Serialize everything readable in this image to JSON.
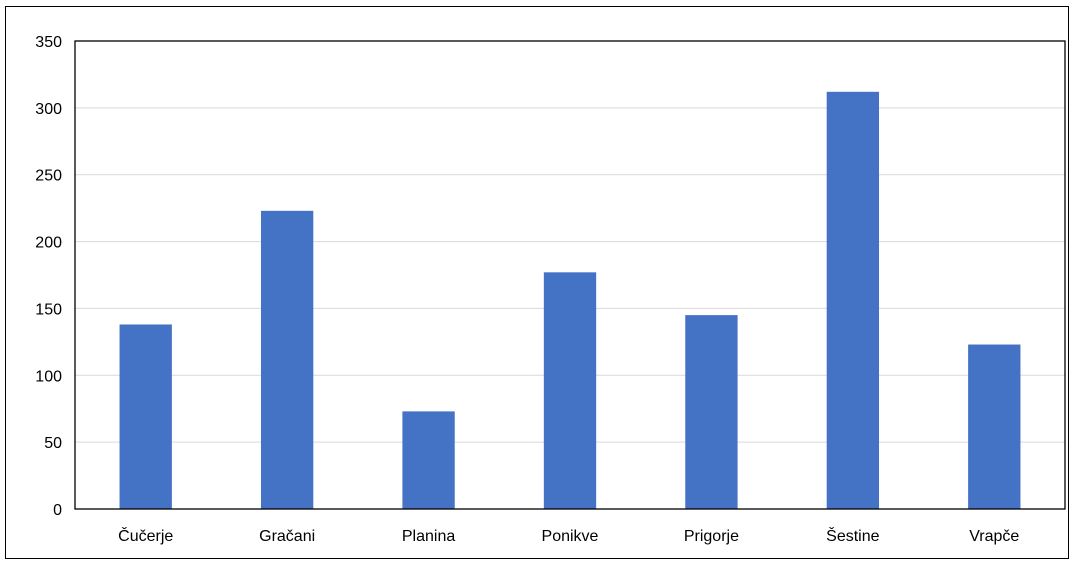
{
  "chart_data": {
    "type": "bar",
    "categories": [
      "Čučerje",
      "Gračani",
      "Planina",
      "Ponikve",
      "Prigorje",
      "Šestine",
      "Vrapče"
    ],
    "values": [
      138,
      223,
      73,
      177,
      145,
      312,
      123
    ],
    "title": "",
    "xlabel": "",
    "ylabel": "",
    "ylim": [
      0,
      350
    ],
    "yticks": [
      0,
      50,
      100,
      150,
      200,
      250,
      300,
      350
    ],
    "grid": true,
    "legend": "none",
    "bar_color": "#4472c4"
  }
}
